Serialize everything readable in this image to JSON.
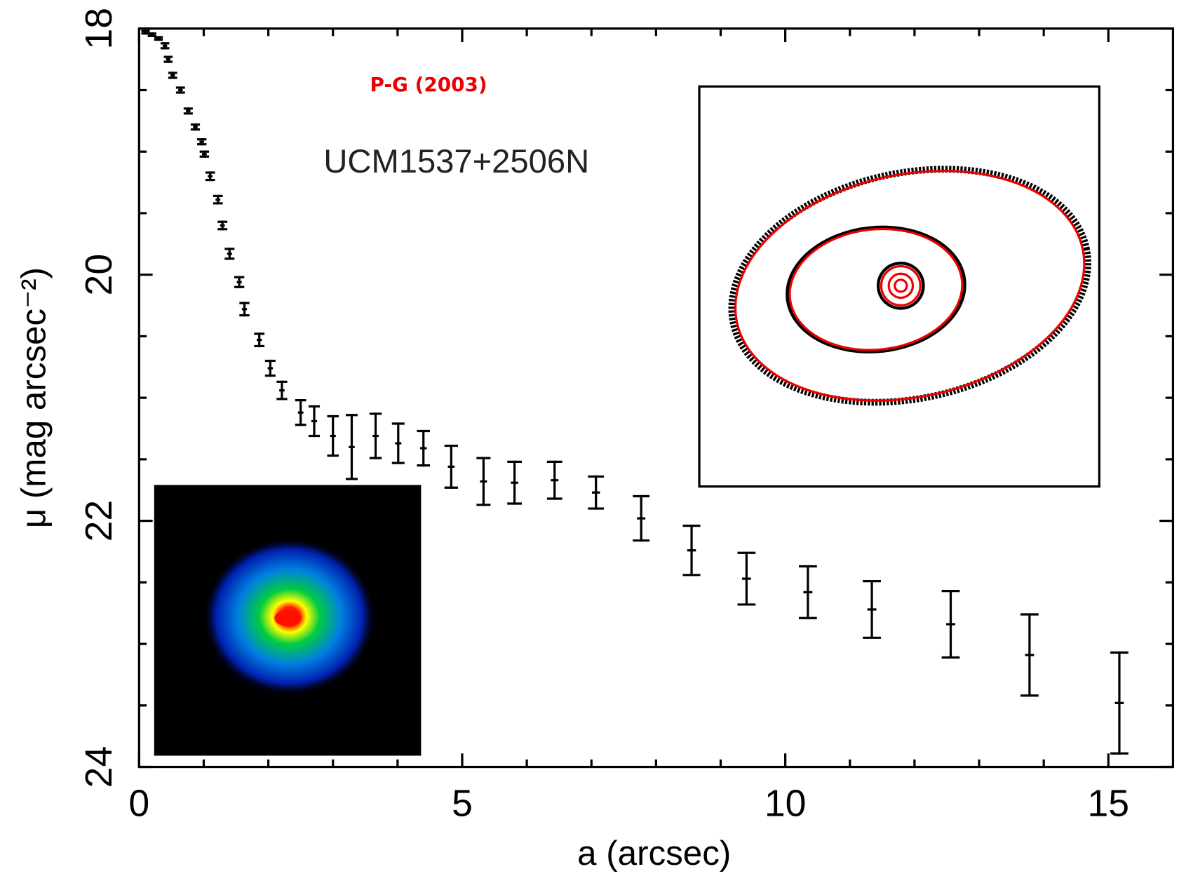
{
  "chart_data": {
    "type": "errorbar",
    "title": "UCM1537+2506N",
    "annotation": "P-G (2003)",
    "xlabel": "a (arcsec)",
    "ylabel": "μ (mag arcsec⁻²)",
    "xlim": [
      0,
      16
    ],
    "ylim": [
      18,
      24
    ],
    "y_inverted": true,
    "xticks": [
      0,
      5,
      10,
      15
    ],
    "xminorticks": [
      1,
      2,
      3,
      4,
      6,
      7,
      8,
      9,
      11,
      12,
      13,
      14
    ],
    "yticks": [
      18,
      20,
      22,
      24
    ],
    "yminorticks": [
      18.5,
      19,
      19.5,
      20.5,
      21,
      21.5,
      22.5,
      23,
      23.5
    ],
    "color": "#000000",
    "x": [
      0.1,
      0.2,
      0.3,
      0.4,
      0.45,
      0.52,
      0.64,
      0.76,
      0.87,
      0.97,
      1.01,
      1.1,
      1.22,
      1.29,
      1.4,
      1.55,
      1.63,
      1.86,
      2.03,
      2.21,
      2.5,
      2.71,
      3.0,
      3.29,
      3.66,
      4.01,
      4.4,
      4.83,
      5.33,
      5.81,
      6.43,
      7.07,
      7.77,
      8.55,
      9.4,
      10.35,
      11.34,
      12.56,
      13.78,
      15.17
    ],
    "values": [
      18.03,
      18.05,
      18.08,
      18.14,
      18.25,
      18.38,
      18.5,
      18.67,
      18.8,
      18.92,
      19.02,
      19.2,
      19.39,
      19.6,
      19.83,
      20.06,
      20.28,
      20.53,
      20.76,
      20.94,
      21.12,
      21.19,
      21.31,
      21.4,
      21.31,
      21.37,
      21.41,
      21.56,
      21.68,
      21.69,
      21.67,
      21.77,
      21.98,
      22.24,
      22.47,
      22.58,
      22.72,
      22.84,
      23.09,
      23.48
    ],
    "errors": [
      0.01,
      0.01,
      0.01,
      0.02,
      0.02,
      0.02,
      0.02,
      0.02,
      0.02,
      0.02,
      0.02,
      0.03,
      0.03,
      0.03,
      0.04,
      0.04,
      0.05,
      0.05,
      0.06,
      0.07,
      0.1,
      0.12,
      0.16,
      0.26,
      0.18,
      0.16,
      0.14,
      0.17,
      0.19,
      0.17,
      0.15,
      0.13,
      0.18,
      0.2,
      0.21,
      0.21,
      0.23,
      0.27,
      0.33,
      0.41
    ]
  }
}
